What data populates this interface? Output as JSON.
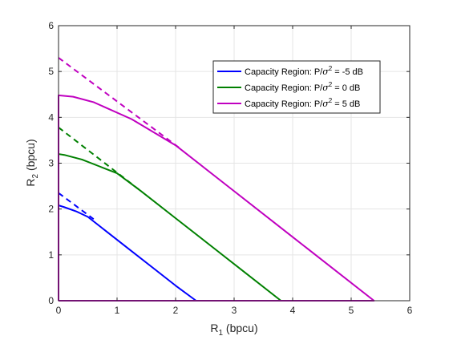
{
  "chart_data": {
    "type": "line",
    "title": "",
    "xlabel": {
      "base": "R",
      "sub": "1",
      "rest": " (bpcu)"
    },
    "ylabel": {
      "base": "R",
      "sub": "2",
      "rest": " (bpcu)"
    },
    "xlim": [
      0,
      6
    ],
    "ylim": [
      0,
      6
    ],
    "xticks": [
      0,
      1,
      2,
      3,
      4,
      5,
      6
    ],
    "yticks": [
      0,
      1,
      2,
      3,
      4,
      5,
      6
    ],
    "grid": true,
    "legend_position": "top-right",
    "series": [
      {
        "name": {
          "pre": "Capacity Region: P/",
          "sigma": "σ",
          "sup": "2",
          "post": " = -5 dB"
        },
        "color": "#0000ff",
        "x": [
          0,
          0,
          0.1,
          0.3,
          0.5,
          0.8,
          1.2,
          1.6,
          2.0,
          2.35,
          0
        ],
        "y": [
          0,
          2.08,
          2.04,
          1.95,
          1.83,
          1.53,
          1.13,
          0.73,
          0.33,
          0,
          0
        ]
      },
      {
        "name": {
          "pre": "Capacity Region: P/",
          "sigma": "σ",
          "sup": "2",
          "post": " = 0 dB"
        },
        "color": "#008000",
        "x": [
          0,
          0,
          0.1,
          0.4,
          0.7,
          1.0,
          1.4,
          2.0,
          2.6,
          3.2,
          3.8,
          0
        ],
        "y": [
          0,
          3.2,
          3.18,
          3.08,
          2.93,
          2.78,
          2.4,
          1.8,
          1.2,
          0.6,
          0,
          0
        ]
      },
      {
        "name": {
          "pre": "Capacity Region: P/",
          "sigma": "σ",
          "sup": "2",
          "post": " = 5 dB"
        },
        "color": "#c000c0",
        "x": [
          0,
          0,
          0.25,
          0.6,
          1.25,
          2.0,
          3.0,
          4.0,
          5.39,
          0
        ],
        "y": [
          0,
          4.48,
          4.45,
          4.33,
          3.96,
          3.39,
          2.39,
          1.39,
          0,
          0
        ]
      }
    ],
    "dashed_lines": [
      {
        "color": "#0000ff",
        "x": [
          0,
          0.6
        ],
        "y": [
          2.35,
          1.78
        ]
      },
      {
        "color": "#008000",
        "x": [
          0,
          1.4
        ],
        "y": [
          3.78,
          2.4
        ]
      },
      {
        "color": "#c000c0",
        "x": [
          0,
          2.1
        ],
        "y": [
          5.3,
          3.3
        ]
      }
    ]
  }
}
